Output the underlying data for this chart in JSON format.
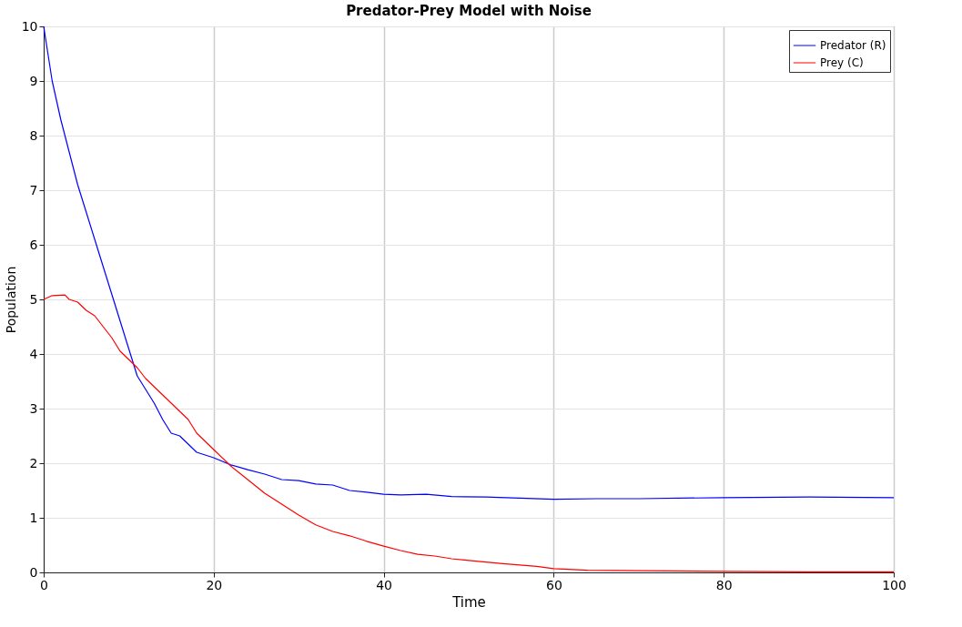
{
  "chart_data": {
    "type": "line",
    "title": "Predator-Prey Model with Noise",
    "xlabel": "Time",
    "ylabel": "Population",
    "xlim": [
      0,
      100
    ],
    "xticks": [
      0,
      20,
      40,
      60,
      80,
      100
    ],
    "ylim": [
      0,
      10
    ],
    "yticks": [
      0,
      1,
      2,
      3,
      4,
      5,
      6,
      7,
      8,
      9,
      10
    ],
    "grid": true,
    "legend": "top right",
    "marker": "none",
    "line_style": "solid",
    "series": [
      {
        "name": "Predator (R)",
        "color": "#0000ff",
        "x": [
          0,
          1,
          2,
          3,
          4,
          5,
          6,
          7,
          8,
          9,
          10,
          11,
          12,
          13,
          14,
          15,
          16,
          17,
          18,
          20,
          22,
          24,
          26,
          28,
          30,
          32,
          34,
          36,
          38,
          40,
          42,
          45,
          48,
          52,
          56,
          60,
          65,
          70,
          80,
          90,
          100
        ],
        "values": [
          10,
          9.0,
          8.3,
          7.7,
          7.1,
          6.6,
          6.1,
          5.6,
          5.1,
          4.6,
          4.1,
          3.6,
          3.35,
          3.1,
          2.8,
          2.55,
          2.5,
          2.35,
          2.2,
          2.1,
          1.97,
          1.88,
          1.8,
          1.7,
          1.68,
          1.62,
          1.6,
          1.5,
          1.47,
          1.43,
          1.42,
          1.43,
          1.39,
          1.38,
          1.36,
          1.34,
          1.35,
          1.35,
          1.37,
          1.38,
          1.37
        ]
      },
      {
        "name": "Prey (C)",
        "color": "#ff0000",
        "x": [
          0,
          1,
          2.5,
          3,
          4,
          5,
          6,
          7,
          8,
          9,
          10,
          11,
          12,
          13,
          14,
          15,
          16,
          17,
          18,
          19,
          20,
          22,
          24,
          26,
          28,
          30,
          32,
          34,
          36,
          38,
          40,
          42,
          44,
          46,
          48,
          50,
          54,
          58,
          60,
          64,
          70,
          80,
          90,
          100
        ],
        "values": [
          5.0,
          5.07,
          5.08,
          5.0,
          4.95,
          4.8,
          4.7,
          4.5,
          4.3,
          4.05,
          3.9,
          3.75,
          3.55,
          3.4,
          3.25,
          3.1,
          2.95,
          2.8,
          2.55,
          2.4,
          2.25,
          1.95,
          1.7,
          1.45,
          1.25,
          1.05,
          0.87,
          0.75,
          0.67,
          0.57,
          0.48,
          0.4,
          0.33,
          0.3,
          0.25,
          0.22,
          0.16,
          0.11,
          0.07,
          0.04,
          0.03,
          0.02,
          0.01,
          0.01
        ]
      }
    ]
  }
}
